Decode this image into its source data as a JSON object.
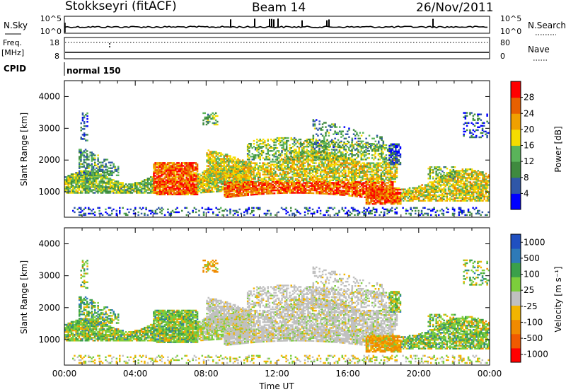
{
  "header": {
    "station": "Stokkseyri (fitACF)",
    "beam": "Beam 14",
    "date": "26/Nov/2011"
  },
  "strip_labels": {
    "nsky": "N.Sky",
    "nsky_top": "10^5",
    "nsky_bottom": "10^0",
    "nsearch": "N.Search",
    "nsearch_top": "10^5",
    "nsearch_bottom": "10^0",
    "freq": "Freq.",
    "freq_unit": "[MHz]",
    "freq_top": "18",
    "freq_bottom": "8",
    "nave": "Nave",
    "nave_top": "80",
    "nave_bottom": "0",
    "cpid": "CPID",
    "mode": "normal 150"
  },
  "colors": {
    "ground_scatter": "#c0c0c0",
    "power_scale": [
      "#0000ff",
      "#2f57a8",
      "#3f8a3f",
      "#5ab45a",
      "#f5dc00",
      "#f0a000",
      "#e86000",
      "#ff0000"
    ],
    "velocity_scale": [
      "#2050c0",
      "#2e7ab8",
      "#3aa04a",
      "#7ccd3c",
      "#c0c0c0",
      "#f2b400",
      "#f08a00",
      "#f05a00",
      "#ff0000"
    ]
  },
  "chart_data": [
    {
      "type": "heatmap",
      "name": "power",
      "ylabel": "Slant Range [km]",
      "xlabel": "",
      "x_ticks": [],
      "ylim": [
        200,
        4500
      ],
      "y_ticks": [
        "1000",
        "2000",
        "3000",
        "4000"
      ],
      "y_tick_values": [
        1000,
        2000,
        3000,
        4000
      ],
      "colorbar_label": "Power [dB]",
      "colorbar_ticks": [
        "4",
        "8",
        "12",
        "16",
        "20",
        "24",
        "28"
      ],
      "colorbar_range": [
        0,
        32
      ]
    },
    {
      "type": "heatmap",
      "name": "velocity",
      "ylabel": "Slant Range [km]",
      "xlabel": "Time UT",
      "x_ticks": [
        "00:00",
        "04:00",
        "08:00",
        "12:00",
        "16:00",
        "20:00",
        "00:00"
      ],
      "x_tick_hours": [
        0,
        4,
        8,
        12,
        16,
        20,
        24
      ],
      "ylim": [
        200,
        4500
      ],
      "y_ticks": [
        "1000",
        "2000",
        "3000",
        "4000"
      ],
      "y_tick_values": [
        1000,
        2000,
        3000,
        4000
      ],
      "colorbar_label": "Velocity [m s⁻¹]",
      "colorbar_ticks": [
        "1000",
        "500",
        "100",
        "25",
        "-25",
        "-100",
        "-500",
        "-1000"
      ]
    }
  ]
}
